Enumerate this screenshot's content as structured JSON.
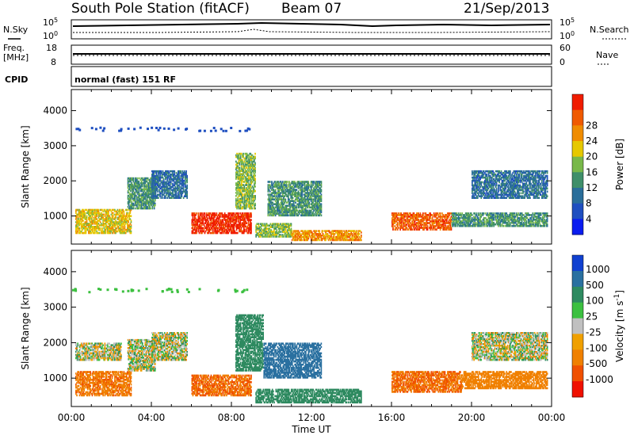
{
  "header": {
    "station": "South Pole Station (fitACF)",
    "beam": "Beam 07",
    "date": "21/Sep/2013"
  },
  "aux_panels": {
    "left_top": "N.Sky",
    "right_top": "N.Search",
    "top_tick_hi_left": "10^5",
    "top_tick_lo_left": "10^0",
    "top_tick_hi_right": "10^5",
    "top_tick_lo_right": "10^0",
    "freq_label_1": "Freq.",
    "freq_label_2": "[MHz]",
    "freq_tick_hi": "18",
    "freq_tick_lo": "8",
    "nave_label": "Nave",
    "nave_tick_hi": "60",
    "nave_tick_lo": "0",
    "cpid_label": "CPID",
    "cpid_text": "normal (fast) 151 RF"
  },
  "colors": {
    "power_scale": [
      "#0a1cf0",
      "#1f4fc0",
      "#2a6e9a",
      "#3f8f6a",
      "#78b84a",
      "#e6c800",
      "#f08c00",
      "#f05a00",
      "#f01c00"
    ],
    "velocity_scale": [
      "#1040d0",
      "#2a70a0",
      "#2e8a60",
      "#3cc040",
      "#c0c0c0",
      "#f0a000",
      "#f08000",
      "#f05000",
      "#f01000"
    ]
  },
  "chart_data": [
    {
      "type": "heatmap",
      "panel": "power",
      "ylabel": "Slant Range [km]",
      "ylim": [
        200,
        4600
      ],
      "yticks": [
        "1000",
        "2000",
        "3000",
        "4000"
      ],
      "xlim": [
        "00:00",
        "24:00"
      ],
      "colorbar_label": "Power [dB]",
      "colorbar_ticks": [
        "4",
        "8",
        "12",
        "16",
        "20",
        "24",
        "28"
      ],
      "regions": [
        {
          "t0": 0.2,
          "t1": 3.0,
          "r0": 500,
          "r1": 1200,
          "level": 5
        },
        {
          "t0": 2.8,
          "t1": 4.2,
          "r0": 1200,
          "r1": 2100,
          "level": 3
        },
        {
          "t0": 4.0,
          "t1": 5.8,
          "r0": 1500,
          "r1": 2300,
          "level": 2
        },
        {
          "t0": 6.0,
          "t1": 9.0,
          "r0": 500,
          "r1": 1100,
          "level": 8
        },
        {
          "t0": 8.2,
          "t1": 9.2,
          "r0": 1200,
          "r1": 2800,
          "level": 4
        },
        {
          "t0": 9.2,
          "t1": 11.0,
          "r0": 400,
          "r1": 800,
          "level": 4
        },
        {
          "t0": 11.0,
          "t1": 14.5,
          "r0": 300,
          "r1": 600,
          "level": 6
        },
        {
          "t0": 9.8,
          "t1": 12.5,
          "r0": 1000,
          "r1": 2000,
          "level": 3
        },
        {
          "t0": 16.0,
          "t1": 19.0,
          "r0": 600,
          "r1": 1100,
          "level": 7
        },
        {
          "t0": 19.0,
          "t1": 23.8,
          "r0": 700,
          "r1": 1100,
          "level": 3
        },
        {
          "t0": 20.0,
          "t1": 23.8,
          "r0": 1500,
          "r1": 2300,
          "level": 2
        }
      ]
    },
    {
      "type": "heatmap",
      "panel": "velocity",
      "ylabel": "Slant Range [km]",
      "ylim": [
        200,
        4600
      ],
      "yticks": [
        "1000",
        "2000",
        "3000",
        "4000"
      ],
      "xlabel": "Time UT",
      "xticks": [
        "00:00",
        "04:00",
        "08:00",
        "12:00",
        "16:00",
        "20:00",
        "00:00"
      ],
      "xlim": [
        "00:00",
        "24:00"
      ],
      "colorbar_label": "Velocity [m s^-1]",
      "colorbar_ticks": [
        "1000",
        "500",
        "100",
        "25",
        "-25",
        "-100",
        "-500",
        "-1000"
      ],
      "regions": [
        {
          "t0": 0.2,
          "t1": 3.0,
          "r0": 500,
          "r1": 1200,
          "value": -250
        },
        {
          "t0": 2.8,
          "t1": 4.2,
          "r0": 1200,
          "r1": 2100,
          "value": 5
        },
        {
          "t0": 4.0,
          "t1": 5.8,
          "r0": 1500,
          "r1": 2300,
          "value": 5
        },
        {
          "t0": 0.2,
          "t1": 2.5,
          "r0": 1500,
          "r1": 2000,
          "value": 5
        },
        {
          "t0": 6.0,
          "t1": 9.0,
          "r0": 500,
          "r1": 1100,
          "value": -300
        },
        {
          "t0": 8.2,
          "t1": 9.6,
          "r0": 1200,
          "r1": 2800,
          "value": 200
        },
        {
          "t0": 9.6,
          "t1": 12.5,
          "r0": 1000,
          "r1": 2000,
          "value": 600
        },
        {
          "t0": 9.2,
          "t1": 14.5,
          "r0": 300,
          "r1": 700,
          "value": 150
        },
        {
          "t0": 16.0,
          "t1": 19.5,
          "r0": 600,
          "r1": 1200,
          "value": -300
        },
        {
          "t0": 19.5,
          "t1": 23.8,
          "r0": 700,
          "r1": 1200,
          "value": -150
        },
        {
          "t0": 20.0,
          "t1": 23.8,
          "r0": 1500,
          "r1": 2300,
          "value": 5
        }
      ]
    }
  ]
}
